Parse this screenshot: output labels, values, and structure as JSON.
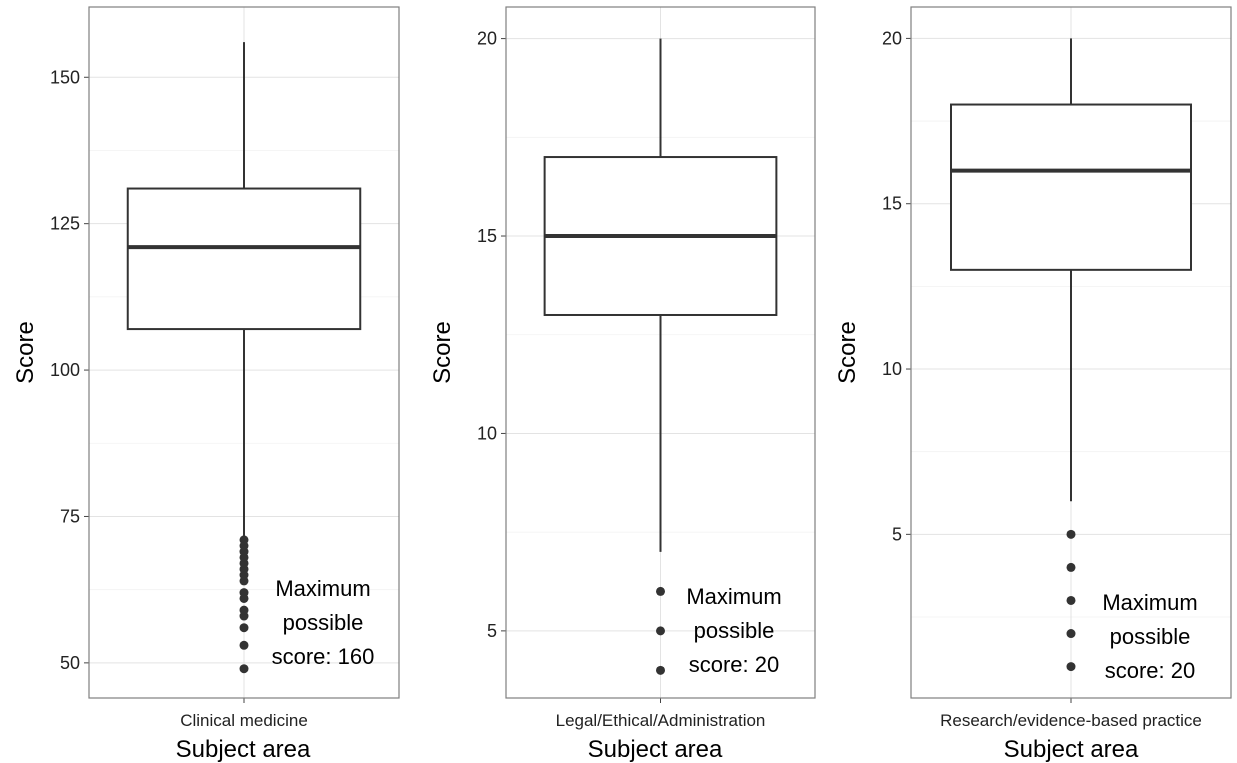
{
  "chart_data": [
    {
      "type": "box",
      "category": "Clinical medicine",
      "xlabel": "Subject area",
      "ylabel": "Score",
      "ylim": [
        44,
        162
      ],
      "yticks": [
        50,
        75,
        100,
        125,
        150
      ],
      "box": {
        "whisker_low": 71,
        "q1": 107,
        "median": 121,
        "q3": 131,
        "whisker_high": 156
      },
      "outliers": [
        49,
        53,
        56,
        58,
        59,
        61,
        62,
        64,
        65,
        66,
        67,
        68,
        69,
        70,
        71
      ],
      "annotation": [
        "Maximum",
        "possible",
        "score: 160"
      ],
      "grid": true
    },
    {
      "type": "box",
      "category": "Legal/Ethical/Administration",
      "xlabel": "Subject area",
      "ylabel": "Score",
      "ylim": [
        3.3,
        20.8
      ],
      "yticks": [
        5,
        10,
        15,
        20
      ],
      "box": {
        "whisker_low": 7,
        "q1": 13,
        "median": 15,
        "q3": 17,
        "whisker_high": 20
      },
      "outliers": [
        4,
        5,
        6
      ],
      "annotation": [
        "Maximum",
        "possible",
        "score: 20"
      ],
      "grid": true
    },
    {
      "type": "box",
      "category": "Research/evidence-based practice",
      "xlabel": "Subject area",
      "ylabel": "Score",
      "ylim": [
        0.05,
        20.95
      ],
      "yticks": [
        5,
        10,
        15,
        20
      ],
      "box": {
        "whisker_low": 6,
        "q1": 13,
        "median": 16,
        "q3": 18,
        "whisker_high": 20
      },
      "outliers": [
        1,
        2,
        3,
        4,
        5
      ],
      "annotation": [
        "Maximum",
        "possible",
        "score: 20"
      ],
      "grid": true
    }
  ]
}
